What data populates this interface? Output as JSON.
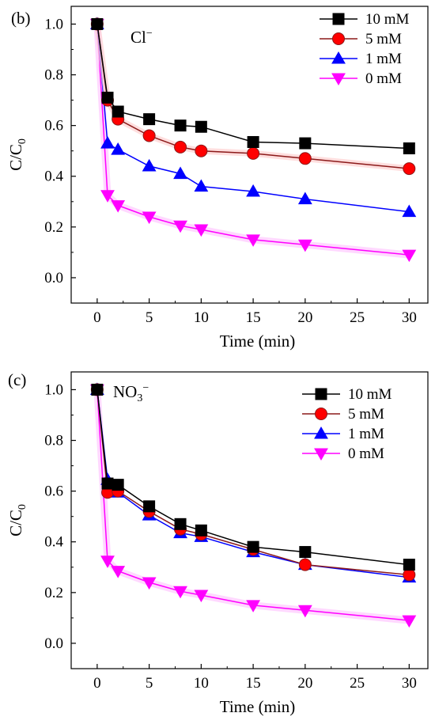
{
  "chart_data": [
    {
      "panel_label": "(b)",
      "ion": {
        "base": "Cl",
        "sub": "",
        "sup": "−"
      },
      "type": "line",
      "xlabel": "Time (min)",
      "ylabel": {
        "main": "C/C",
        "sub": "0"
      },
      "xlim": [
        -2.5,
        31.8
      ],
      "ylim": [
        -0.1,
        1.07
      ],
      "xticks": [
        "0",
        "5",
        "10",
        "15",
        "20",
        "25",
        "30"
      ],
      "yticks": [
        "0.0",
        "0.2",
        "0.4",
        "0.6",
        "0.8",
        "1.0"
      ],
      "x": [
        0,
        1,
        2,
        5,
        8,
        10,
        15,
        20,
        30
      ],
      "series": [
        {
          "name": "10 mM",
          "values": [
            1.0,
            0.71,
            0.655,
            0.625,
            0.6,
            0.595,
            0.535,
            0.53,
            0.51
          ]
        },
        {
          "name": "5 mM",
          "values": [
            1.0,
            0.7,
            0.625,
            0.56,
            0.515,
            0.5,
            0.49,
            0.47,
            0.43
          ]
        },
        {
          "name": "1 mM",
          "values": [
            1.0,
            0.53,
            0.505,
            0.44,
            0.41,
            0.36,
            0.34,
            0.31,
            0.26
          ]
        },
        {
          "name": "0 mM",
          "values": [
            1.0,
            0.325,
            0.285,
            0.24,
            0.205,
            0.19,
            0.15,
            0.13,
            0.09
          ]
        }
      ],
      "legend": "top-right",
      "grid": false
    },
    {
      "panel_label": "(c)",
      "ion": {
        "base": "NO",
        "sub": "3",
        "sup": "−"
      },
      "type": "line",
      "xlabel": "Time (min)",
      "ylabel": {
        "main": "C/C",
        "sub": "0"
      },
      "xlim": [
        -2.5,
        31.8
      ],
      "ylim": [
        -0.1,
        1.07
      ],
      "xticks": [
        "0",
        "5",
        "10",
        "15",
        "20",
        "25",
        "30"
      ],
      "yticks": [
        "0.0",
        "0.2",
        "0.4",
        "0.6",
        "0.8",
        "1.0"
      ],
      "x": [
        0,
        1,
        2,
        5,
        8,
        10,
        15,
        20,
        30
      ],
      "series": [
        {
          "name": "10 mM",
          "values": [
            1.0,
            0.63,
            0.625,
            0.54,
            0.47,
            0.445,
            0.38,
            0.36,
            0.31
          ]
        },
        {
          "name": "5 mM",
          "values": [
            1.0,
            0.595,
            0.6,
            0.52,
            0.45,
            0.43,
            0.37,
            0.31,
            0.27
          ]
        },
        {
          "name": "1 mM",
          "values": [
            1.0,
            0.645,
            0.595,
            0.505,
            0.435,
            0.42,
            0.36,
            0.31,
            0.26
          ]
        },
        {
          "name": "0 mM",
          "values": [
            1.0,
            0.325,
            0.285,
            0.24,
            0.205,
            0.19,
            0.15,
            0.13,
            0.09
          ]
        }
      ],
      "legend": "top-right",
      "grid": false
    }
  ],
  "series_style": [
    {
      "marker": "square",
      "color": "#000000",
      "fill": "#000000"
    },
    {
      "marker": "circle",
      "color": "#8b1a1a",
      "fill": "#ff0000"
    },
    {
      "marker": "triangle-up",
      "color": "#0000ff",
      "fill": "#0000ff"
    },
    {
      "marker": "triangle-down",
      "color": "#ff00ff",
      "fill": "#ff00ff"
    }
  ]
}
